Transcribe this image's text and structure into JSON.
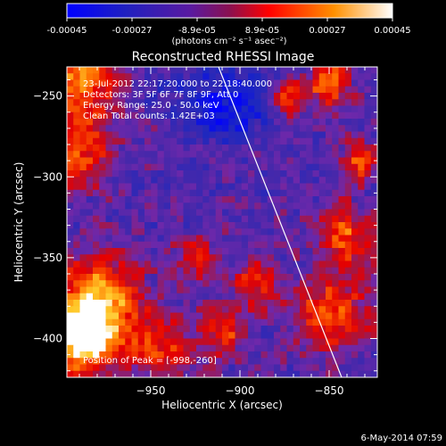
{
  "colorbar": {
    "ticks": [
      "-0.00045",
      "-0.00027",
      "-8.9e-05",
      "8.9e-05",
      "0.00027",
      "0.00045"
    ],
    "unit_label": "(photons cm⁻² s⁻¹ asec⁻²)",
    "range": [
      -0.00045,
      0.00045
    ],
    "colormap": [
      "#0000ff",
      "#3a1aa6",
      "#6a1aa0",
      "#ff0000",
      "#ff9a00",
      "#ffffff"
    ]
  },
  "image": {
    "title": "Reconstructed RHESSI Image",
    "info_lines": [
      "23-Jul-2012 22:17:20.000 to 22:18:40.000",
      "Detectors: 3F 5F 6F 7F 8F 9F, Att 0",
      "Energy Range: 25.0 - 50.0 keV",
      "Clean    Total counts: 1.42E+03"
    ],
    "peak_label": "Position of Peak = [-998,-260]",
    "footer_date": "6-May-2014 07:59"
  },
  "chart_data": {
    "type": "heatmap",
    "title": "Reconstructed RHESSI Image",
    "xlabel": "Heliocentric X (arcsec)",
    "ylabel": "Heliocentric Y (arcsec)",
    "xlim": [
      -997,
      -823
    ],
    "ylim": [
      -424,
      -232
    ],
    "xticks": [
      -950,
      -900,
      -850
    ],
    "yticks": [
      -250,
      -300,
      -350,
      -400
    ],
    "peak": [
      -998,
      -260
    ],
    "limb_line": [
      [
        -912,
        -232
      ],
      [
        -843,
        -424
      ]
    ]
  }
}
